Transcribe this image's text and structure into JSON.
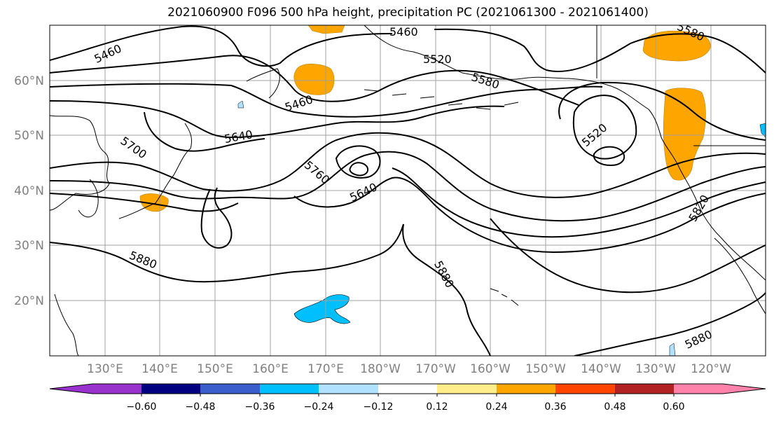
{
  "title": "2021060900 F096 500 hPa height, precipitation PC (2021061300 - 2021061400)",
  "latitude_labels": [
    "60°N",
    "50°N",
    "40°N",
    "30°N",
    "20°N"
  ],
  "longitude_labels": [
    "130°E",
    "140°E",
    "150°E",
    "160°E",
    "170°E",
    "180°W",
    "170°W",
    "160°W",
    "150°W",
    "140°W",
    "130°W",
    "120°W"
  ],
  "contour_labels": [
    "5460",
    "5460",
    "5520",
    "5580",
    "5460",
    "5640",
    "5700",
    "5760",
    "5640",
    "5520",
    "5580",
    "5820",
    "5880",
    "5880",
    "5880"
  ],
  "colorbar": {
    "tick_labels": [
      "−0.60",
      "−0.48",
      "−0.36",
      "−0.24",
      "−0.12",
      "0.12",
      "0.24",
      "0.36",
      "0.48",
      "0.60"
    ],
    "colors": [
      "#9932cc",
      "#000080",
      "#3a5fcd",
      "#00bfff",
      "#b0e2ff",
      "#ffffff",
      "#ffec8b",
      "#ffa500",
      "#ff4500",
      "#b22222",
      "#ff82ab"
    ]
  },
  "precip_colors": {
    "positive": "#ffa500",
    "negative": "#00bfff"
  }
}
